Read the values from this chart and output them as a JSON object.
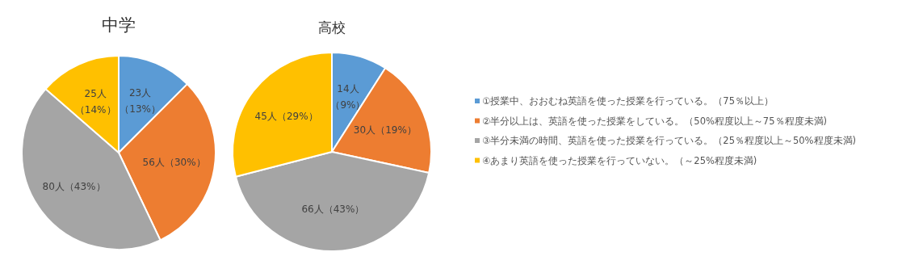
{
  "chart_data": [
    {
      "type": "pie",
      "title": "中学",
      "categories": [
        null,
        null,
        null,
        null
      ],
      "values": [
        23,
        56,
        80,
        25
      ],
      "colors": [
        "#5b9bd5",
        "#ed7d31",
        "#a5a5a5",
        "#ffc000"
      ],
      "value_labels": [
        "23人（13%）",
        "56人（30%）",
        "80人（43%）",
        "25人（14%）"
      ],
      "legend": false
    },
    {
      "type": "pie",
      "title": "高校",
      "categories": [
        "①授業中、おおむね英語を使った授業を行っている。（75％以上）",
        "②半分以上は、英語を使った授業をしている。（50%程度以上～75％程度未満)",
        "③半分未満の時間、英語を使った授業を行っている。（25％程度以上～50%程度未満)",
        "④あまり英語を使った授業を行っていない。（～25%程度未満)"
      ],
      "values": [
        14,
        30,
        66,
        45
      ],
      "colors": [
        "#5b9bd5",
        "#ed7d31",
        "#a5a5a5",
        "#ffc000"
      ],
      "value_labels": [
        "14人（9%）",
        "30人（19%）",
        "66人（43%）",
        "45人（29%）"
      ],
      "legend": "right"
    }
  ]
}
